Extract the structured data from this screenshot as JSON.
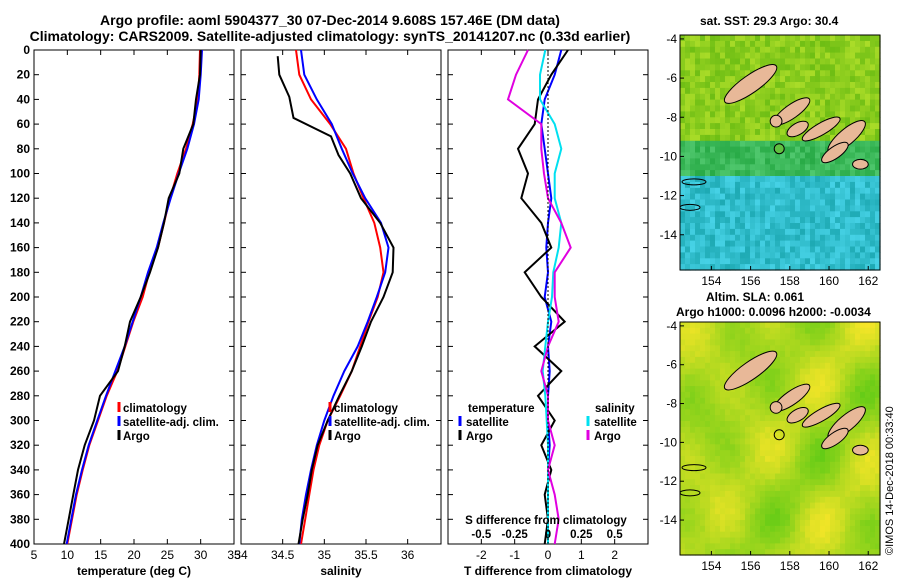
{
  "header": {
    "line1": "Argo profile: aoml 5904377_30 07-Dec-2014 9.608S 157.46E (DM data)",
    "line2": "Climatology: CARS2009. Satellite-adjusted climatology: synTS_20141207.nc (0.33d earlier)"
  },
  "colors": {
    "climatology": "#ff0000",
    "satellite": "#0000ff",
    "argo": "#000000",
    "sat_salinity": "#00e0f0",
    "argo_salinity": "#e000e0",
    "land": "#e8b898"
  },
  "chart_data": [
    {
      "type": "line",
      "id": "temperature",
      "xlabel": "temperature (deg C)",
      "ylabel": "",
      "xlim": [
        5,
        35
      ],
      "ylim": [
        400,
        0
      ],
      "xticks": [
        5,
        10,
        15,
        20,
        25,
        30,
        35
      ],
      "yticks": [
        0,
        20,
        40,
        60,
        80,
        100,
        120,
        140,
        160,
        180,
        200,
        220,
        240,
        260,
        280,
        300,
        320,
        340,
        360,
        380,
        400
      ],
      "legend": [
        "climatology",
        "satellite-adj. clim.",
        "Argo"
      ],
      "series": [
        {
          "name": "climatology",
          "color": "#ff0000",
          "points": [
            [
              29.9,
              0
            ],
            [
              29.8,
              20
            ],
            [
              29.6,
              40
            ],
            [
              28.8,
              60
            ],
            [
              27.8,
              80
            ],
            [
              26.5,
              100
            ],
            [
              25.4,
              120
            ],
            [
              24.5,
              140
            ],
            [
              23.6,
              160
            ],
            [
              22.3,
              180
            ],
            [
              21.3,
              200
            ],
            [
              19.9,
              220
            ],
            [
              18.7,
              240
            ],
            [
              17.5,
              260
            ],
            [
              15.9,
              280
            ],
            [
              14.6,
              300
            ],
            [
              13.3,
              320
            ],
            [
              12.3,
              340
            ],
            [
              11.4,
              360
            ],
            [
              10.7,
              380
            ],
            [
              10.0,
              400
            ]
          ]
        },
        {
          "name": "satellite-adj. clim.",
          "color": "#0000ff",
          "points": [
            [
              30.2,
              0
            ],
            [
              30.0,
              20
            ],
            [
              29.7,
              40
            ],
            [
              29.0,
              60
            ],
            [
              28.0,
              80
            ],
            [
              26.7,
              100
            ],
            [
              25.5,
              120
            ],
            [
              24.4,
              140
            ],
            [
              23.4,
              160
            ],
            [
              22.1,
              180
            ],
            [
              21.0,
              200
            ],
            [
              19.8,
              220
            ],
            [
              18.6,
              240
            ],
            [
              17.2,
              260
            ],
            [
              15.8,
              280
            ],
            [
              14.5,
              300
            ],
            [
              13.2,
              320
            ],
            [
              12.2,
              340
            ],
            [
              11.3,
              360
            ],
            [
              10.6,
              380
            ],
            [
              9.9,
              400
            ]
          ]
        },
        {
          "name": "Argo",
          "color": "#000000",
          "points": [
            [
              30.0,
              0
            ],
            [
              29.9,
              20
            ],
            [
              29.3,
              40
            ],
            [
              28.9,
              60
            ],
            [
              27.4,
              80
            ],
            [
              26.8,
              100
            ],
            [
              25.2,
              120
            ],
            [
              24.5,
              140
            ],
            [
              23.6,
              160
            ],
            [
              22.4,
              180
            ],
            [
              21.0,
              200
            ],
            [
              19.4,
              220
            ],
            [
              18.6,
              240
            ],
            [
              17.6,
              260
            ],
            [
              14.9,
              280
            ],
            [
              14.0,
              300
            ],
            [
              12.6,
              320
            ],
            [
              11.6,
              340
            ],
            [
              10.9,
              360
            ],
            [
              10.2,
              380
            ],
            [
              9.5,
              400
            ]
          ]
        }
      ]
    },
    {
      "type": "line",
      "id": "salinity",
      "xlabel": "salinity",
      "ylabel": "",
      "xlim": [
        34,
        36.4
      ],
      "ylim": [
        400,
        0
      ],
      "xticks": [
        34,
        34.5,
        35,
        35.5,
        36
      ],
      "legend": [
        "climatology",
        "satellite-adj. clim.",
        "Argo"
      ],
      "series": [
        {
          "name": "climatology",
          "color": "#ff0000",
          "points": [
            [
              34.66,
              0
            ],
            [
              34.7,
              20
            ],
            [
              34.84,
              40
            ],
            [
              35.07,
              60
            ],
            [
              35.26,
              80
            ],
            [
              35.35,
              100
            ],
            [
              35.47,
              120
            ],
            [
              35.6,
              140
            ],
            [
              35.67,
              160
            ],
            [
              35.71,
              180
            ],
            [
              35.64,
              200
            ],
            [
              35.53,
              220
            ],
            [
              35.43,
              240
            ],
            [
              35.33,
              260
            ],
            [
              35.19,
              280
            ],
            [
              35.04,
              300
            ],
            [
              34.94,
              320
            ],
            [
              34.87,
              340
            ],
            [
              34.82,
              360
            ],
            [
              34.77,
              380
            ],
            [
              34.72,
              400
            ]
          ]
        },
        {
          "name": "satellite-adj. clim.",
          "color": "#0000ff",
          "points": [
            [
              34.72,
              0
            ],
            [
              34.76,
              20
            ],
            [
              34.91,
              40
            ],
            [
              35.09,
              60
            ],
            [
              35.21,
              80
            ],
            [
              35.34,
              100
            ],
            [
              35.49,
              120
            ],
            [
              35.68,
              140
            ],
            [
              35.77,
              160
            ],
            [
              35.73,
              180
            ],
            [
              35.63,
              200
            ],
            [
              35.52,
              220
            ],
            [
              35.4,
              240
            ],
            [
              35.24,
              260
            ],
            [
              35.11,
              280
            ],
            [
              35.0,
              300
            ],
            [
              34.91,
              320
            ],
            [
              34.84,
              340
            ],
            [
              34.78,
              360
            ],
            [
              34.73,
              380
            ],
            [
              34.7,
              400
            ]
          ]
        },
        {
          "name": "Argo",
          "color": "#000000",
          "points": [
            [
              34.44,
              5
            ],
            [
              34.46,
              20
            ],
            [
              34.58,
              38
            ],
            [
              34.63,
              55
            ],
            [
              35.08,
              70
            ],
            [
              35.17,
              85
            ],
            [
              35.31,
              100
            ],
            [
              35.44,
              120
            ],
            [
              35.67,
              140
            ],
            [
              35.83,
              160
            ],
            [
              35.82,
              180
            ],
            [
              35.71,
              200
            ],
            [
              35.56,
              220
            ],
            [
              35.45,
              240
            ],
            [
              35.33,
              260
            ],
            [
              35.18,
              280
            ],
            [
              35.04,
              300
            ],
            [
              34.92,
              320
            ],
            [
              34.85,
              340
            ],
            [
              34.8,
              360
            ],
            [
              34.74,
              380
            ],
            [
              34.69,
              400
            ]
          ]
        }
      ]
    },
    {
      "type": "line",
      "id": "difference",
      "xlabel": "T difference from climatology",
      "xlim": [
        -3,
        3
      ],
      "ylim": [
        400,
        0
      ],
      "xticks": [
        -2,
        -1,
        0,
        1,
        2
      ],
      "x2label": "S difference from climatology",
      "x2lim": [
        -0.75,
        0.75
      ],
      "x2ticks": [
        -0.5,
        -0.25,
        0,
        0.25,
        0.5
      ],
      "legend_left_title": "temperature",
      "legend_right_title": "salinity",
      "legend": [
        "satellite",
        "Argo",
        "satellite",
        "Argo"
      ],
      "series": [
        {
          "name": "satellite",
          "color": "#0000ff",
          "axis": "T",
          "points": [
            [
              0.4,
              0
            ],
            [
              0.2,
              20
            ],
            [
              -0.1,
              40
            ],
            [
              -0.2,
              60
            ],
            [
              -0.1,
              80
            ],
            [
              0.0,
              100
            ],
            [
              0.1,
              120
            ],
            [
              0.0,
              140
            ],
            [
              -0.05,
              160
            ],
            [
              0.0,
              180
            ],
            [
              -0.1,
              200
            ],
            [
              0.1,
              220
            ],
            [
              0.0,
              240
            ],
            [
              0.05,
              260
            ],
            [
              0.0,
              280
            ],
            [
              0.0,
              300
            ],
            [
              0.05,
              320
            ],
            [
              0.0,
              340
            ],
            [
              0.0,
              360
            ],
            [
              0.0,
              380
            ],
            [
              0.0,
              400
            ]
          ]
        },
        {
          "name": "Argo",
          "color": "#000000",
          "axis": "T",
          "points": [
            [
              0.6,
              0
            ],
            [
              0.1,
              20
            ],
            [
              -0.3,
              40
            ],
            [
              -0.4,
              60
            ],
            [
              -0.9,
              80
            ],
            [
              -0.6,
              100
            ],
            [
              -0.8,
              120
            ],
            [
              -0.2,
              140
            ],
            [
              0.1,
              160
            ],
            [
              -0.7,
              180
            ],
            [
              -0.2,
              200
            ],
            [
              0.5,
              220
            ],
            [
              -0.4,
              240
            ],
            [
              0.4,
              260
            ],
            [
              -0.3,
              280
            ],
            [
              0.2,
              300
            ],
            [
              -0.2,
              320
            ],
            [
              0.1,
              340
            ],
            [
              -0.1,
              360
            ],
            [
              0.0,
              380
            ],
            [
              -0.1,
              400
            ]
          ]
        },
        {
          "name": "satellite",
          "color": "#00e0f0",
          "axis": "S",
          "points": [
            [
              -0.02,
              0
            ],
            [
              -0.06,
              20
            ],
            [
              -0.06,
              40
            ],
            [
              0.05,
              60
            ],
            [
              0.1,
              80
            ],
            [
              0.05,
              100
            ],
            [
              0.05,
              120
            ],
            [
              0.1,
              140
            ],
            [
              0.08,
              160
            ],
            [
              0.04,
              180
            ],
            [
              0.03,
              200
            ],
            [
              0.0,
              220
            ],
            [
              -0.02,
              240
            ],
            [
              -0.04,
              260
            ],
            [
              -0.02,
              280
            ],
            [
              -0.01,
              300
            ],
            [
              0.0,
              320
            ],
            [
              0.0,
              340
            ],
            [
              0.0,
              360
            ],
            [
              0.0,
              380
            ],
            [
              0.0,
              400
            ]
          ]
        },
        {
          "name": "Argo",
          "color": "#e000e0",
          "axis": "S",
          "points": [
            [
              -0.15,
              0
            ],
            [
              -0.24,
              20
            ],
            [
              -0.3,
              40
            ],
            [
              -0.05,
              60
            ],
            [
              -0.05,
              80
            ],
            [
              -0.03,
              100
            ],
            [
              0.0,
              120
            ],
            [
              0.1,
              140
            ],
            [
              0.17,
              160
            ],
            [
              0.05,
              180
            ],
            [
              0.05,
              200
            ],
            [
              0.08,
              220
            ],
            [
              0.0,
              240
            ],
            [
              -0.05,
              260
            ],
            [
              0.0,
              280
            ],
            [
              0.0,
              300
            ],
            [
              0.05,
              320
            ],
            [
              0.0,
              340
            ],
            [
              0.05,
              360
            ],
            [
              0.08,
              380
            ],
            [
              0.05,
              400
            ]
          ]
        }
      ]
    },
    {
      "type": "heatmap",
      "id": "sst_map",
      "title": "sat. SST: 29.3 Argo: 30.4",
      "xlim": [
        152.4,
        162.6
      ],
      "ylim": [
        -15.8,
        -3.8
      ],
      "xticks": [
        154,
        156,
        158,
        160,
        162
      ],
      "yticks": [
        -4,
        -6,
        -8,
        -10,
        -12,
        -14
      ],
      "float_position": [
        157.46,
        -9.608
      ]
    },
    {
      "type": "heatmap",
      "id": "sla_map",
      "title": "Altim. SLA: 0.061",
      "subtitle": "Argo h1000: 0.0096 h2000: -0.0034",
      "xlim": [
        152.4,
        162.6
      ],
      "ylim": [
        -15.8,
        -3.8
      ],
      "xticks": [
        154,
        156,
        158,
        160,
        162
      ],
      "yticks": [
        -4,
        -6,
        -8,
        -10,
        -12,
        -14
      ],
      "float_position": [
        157.46,
        -9.608
      ]
    }
  ],
  "watermark": "©IMOS 14-Dec-2018 00:33:40"
}
